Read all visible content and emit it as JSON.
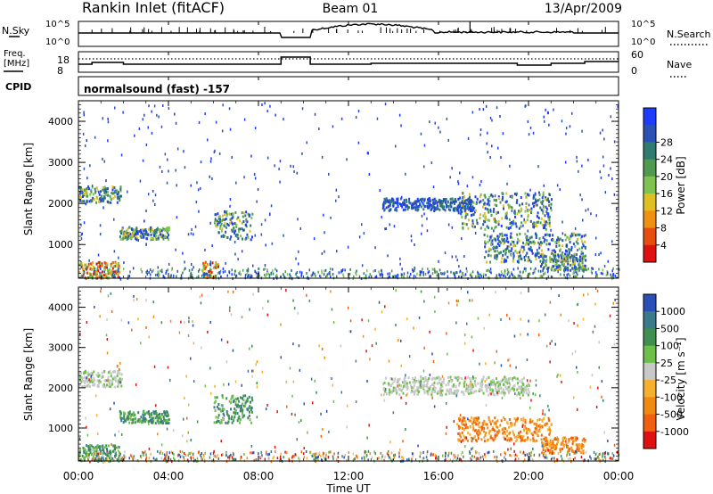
{
  "header": {
    "left_title": "Rankin Inlet (fitACF)",
    "center_title": "Beam 01",
    "right_date": "13/Apr/2009"
  },
  "top_panels": {
    "nsky": {
      "label": "N.Sky",
      "ticks_left": [
        "10^5",
        "10^0"
      ],
      "ticks_right": [
        "10^5",
        "10^0"
      ],
      "right_label": "N.Search",
      "right_line_style": "dotted"
    },
    "freq": {
      "label_line1": "Freq.",
      "label_line2": "[MHz]",
      "ticks_left": [
        "18",
        "8"
      ],
      "ticks_right": [
        "60",
        "0"
      ],
      "right_label": "Nave",
      "right_line_style": "dotted"
    },
    "cpid": {
      "label": "CPID",
      "text": "normalsound (fast) -157"
    }
  },
  "chart_data": [
    {
      "type": "heatmap",
      "panel": "power",
      "title": "",
      "ylabel": "Slant Range [km]",
      "xlabel": "",
      "ylim": [
        180,
        4500
      ],
      "xlim": [
        0,
        24
      ],
      "yticks": [
        "1000",
        "2000",
        "3000",
        "4000"
      ],
      "xticks": [
        "00:00",
        "04:00",
        "08:00",
        "12:00",
        "16:00",
        "20:00",
        "00:00"
      ],
      "colorbar": {
        "label": "Power [dB]",
        "ticks": [
          "4",
          "8",
          "12",
          "16",
          "20",
          "24",
          "28"
        ],
        "colors": [
          "#1e3cff",
          "#2a52b4",
          "#2f7b70",
          "#4f9a4f",
          "#7ec24f",
          "#e0c020",
          "#f09010",
          "#e84d10",
          "#e01010"
        ]
      },
      "echo_regions": [
        {
          "t": [
            0.0,
            1.8
          ],
          "range": [
            200,
            600
          ],
          "level": "high"
        },
        {
          "t": [
            0.0,
            1.9
          ],
          "range": [
            2050,
            2450
          ],
          "level": "mid"
        },
        {
          "t": [
            1.8,
            4.0
          ],
          "range": [
            1150,
            1450
          ],
          "level": "mid"
        },
        {
          "t": [
            5.5,
            6.2
          ],
          "range": [
            200,
            600
          ],
          "level": "high"
        },
        {
          "t": [
            6.0,
            7.7
          ],
          "range": [
            1150,
            1850
          ],
          "level": "mid"
        },
        {
          "t": [
            13.5,
            17.5
          ],
          "range": [
            1850,
            2150
          ],
          "level": "low"
        },
        {
          "t": [
            16.8,
            21.0
          ],
          "range": [
            1400,
            2300
          ],
          "level": "mid"
        },
        {
          "t": [
            18.0,
            22.5
          ],
          "range": [
            600,
            1300
          ],
          "level": "mid"
        },
        {
          "t": [
            20.5,
            22.5
          ],
          "range": [
            400,
            800
          ],
          "level": "mid"
        }
      ]
    },
    {
      "type": "heatmap",
      "panel": "velocity",
      "title": "",
      "ylabel": "Slant Range [km]",
      "xlabel": "Time UT",
      "ylim": [
        180,
        4500
      ],
      "xlim": [
        0,
        24
      ],
      "yticks": [
        "1000",
        "2000",
        "3000",
        "4000"
      ],
      "xticks": [
        "00:00",
        "04:00",
        "08:00",
        "12:00",
        "16:00",
        "20:00",
        "00:00"
      ],
      "colorbar": {
        "label": "Velocity [m s⁻¹]",
        "ticks": [
          "1000",
          "500",
          "100",
          "25",
          "-25",
          "-100",
          "-500",
          "-1000"
        ],
        "colors": [
          "#2a4fb8",
          "#3a7a8a",
          "#3f8f4f",
          "#6cc04a",
          "#c8c8c8",
          "#f5b030",
          "#f08a10",
          "#f06010",
          "#e01010"
        ]
      },
      "echo_regions": [
        {
          "t": [
            0.0,
            1.8
          ],
          "range": [
            200,
            600
          ],
          "level": "green"
        },
        {
          "t": [
            0.0,
            1.9
          ],
          "range": [
            2050,
            2450
          ],
          "level": "grey"
        },
        {
          "t": [
            1.8,
            4.0
          ],
          "range": [
            1150,
            1450
          ],
          "level": "green"
        },
        {
          "t": [
            6.0,
            7.7
          ],
          "range": [
            1150,
            1850
          ],
          "level": "green"
        },
        {
          "t": [
            13.5,
            20.0
          ],
          "range": [
            1850,
            2300
          ],
          "level": "grey"
        },
        {
          "t": [
            16.8,
            21.0
          ],
          "range": [
            700,
            1300
          ],
          "level": "orange"
        },
        {
          "t": [
            20.5,
            22.5
          ],
          "range": [
            400,
            800
          ],
          "level": "orange"
        }
      ]
    }
  ]
}
